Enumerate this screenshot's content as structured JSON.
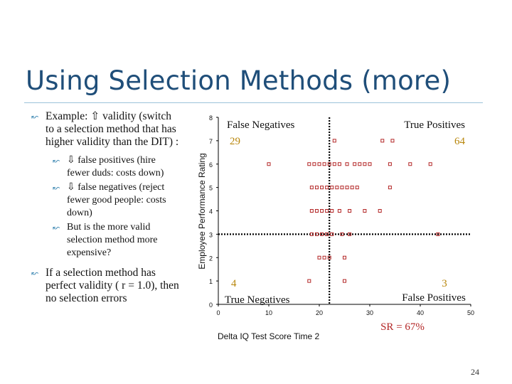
{
  "slide": {
    "title": "Using Selection Methods (more)",
    "page_number": "24",
    "bullets": [
      {
        "text": "Example: ⇧ validity (switch to a selection method that has higher validity than the DIT) :",
        "sub": [
          "⇩ false positives (hire fewer duds: costs down)",
          "⇩ false negatives (reject fewer good people: costs down)",
          "But is the more valid selection method more expensive?"
        ]
      },
      {
        "text": "If a selection method has perfect validity ( r = 1.0), then no selection errors",
        "sub": []
      }
    ]
  },
  "chart_data": {
    "type": "scatter",
    "xlabel": "Delta IQ Test Score Time 2",
    "ylabel": "Employee Performance Rating",
    "xlim": [
      0,
      50
    ],
    "ylim": [
      0,
      8
    ],
    "xticks": [
      0,
      10,
      20,
      30,
      40,
      50
    ],
    "yticks": [
      0,
      1,
      2,
      3,
      4,
      5,
      6,
      7,
      8
    ],
    "x_cutoff": 22,
    "y_cutoff": 3,
    "quadrants": {
      "top_left": {
        "label": "False Negatives",
        "count": "29"
      },
      "top_right": {
        "label": "True Positives",
        "count": "64"
      },
      "bottom_left": {
        "label": "True Negatives",
        "count": "4"
      },
      "bottom_right": {
        "label": "False Positives",
        "count": "3"
      }
    },
    "annotation": "SR = 67%",
    "point_color": "#b32626",
    "points": [
      [
        23,
        7
      ],
      [
        32.5,
        7
      ],
      [
        34.5,
        7
      ],
      [
        10,
        6
      ],
      [
        18,
        6
      ],
      [
        19,
        6
      ],
      [
        20,
        6
      ],
      [
        21,
        6
      ],
      [
        22,
        6
      ],
      [
        23,
        6
      ],
      [
        24,
        6
      ],
      [
        25.5,
        6
      ],
      [
        27,
        6
      ],
      [
        28,
        6
      ],
      [
        29,
        6
      ],
      [
        30,
        6
      ],
      [
        34,
        6
      ],
      [
        38,
        6
      ],
      [
        42,
        6
      ],
      [
        18.5,
        5
      ],
      [
        19.5,
        5
      ],
      [
        20.5,
        5
      ],
      [
        21.5,
        5
      ],
      [
        22.5,
        5
      ],
      [
        23.5,
        5
      ],
      [
        24.5,
        5
      ],
      [
        25.5,
        5
      ],
      [
        26.5,
        5
      ],
      [
        27.5,
        5
      ],
      [
        34,
        5
      ],
      [
        18.5,
        4
      ],
      [
        19.5,
        4
      ],
      [
        20.5,
        4
      ],
      [
        21.5,
        4
      ],
      [
        22.5,
        4
      ],
      [
        24,
        4
      ],
      [
        26,
        4
      ],
      [
        29,
        4
      ],
      [
        32,
        4
      ],
      [
        18.5,
        3
      ],
      [
        19.5,
        3
      ],
      [
        20.5,
        3
      ],
      [
        21.5,
        3
      ],
      [
        22.5,
        3
      ],
      [
        24.5,
        3
      ],
      [
        26,
        3
      ],
      [
        43.5,
        3
      ],
      [
        20,
        2
      ],
      [
        21,
        2
      ],
      [
        22,
        2
      ],
      [
        25,
        2
      ],
      [
        18,
        1
      ],
      [
        25,
        1
      ]
    ]
  }
}
